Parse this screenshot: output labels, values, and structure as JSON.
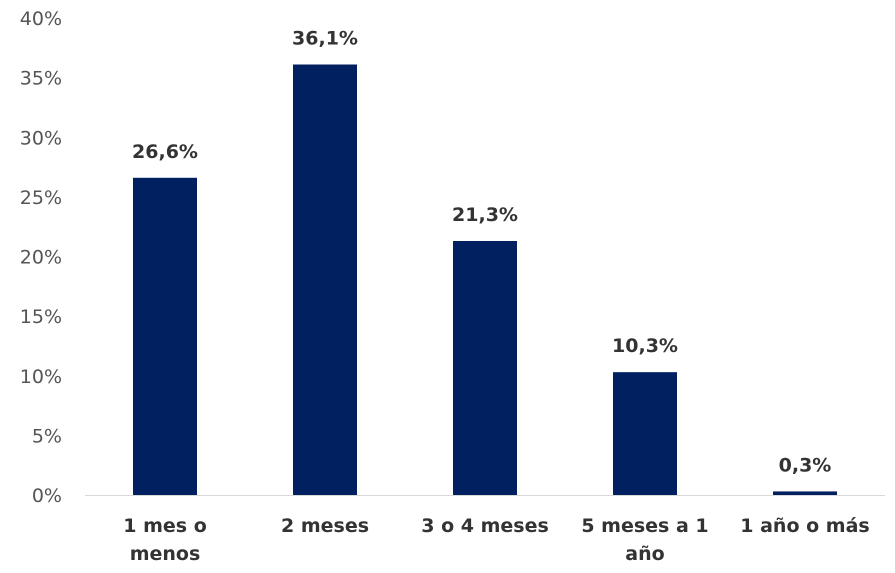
{
  "chart_data": {
    "type": "bar",
    "categories": [
      "1 mes o menos",
      "2 meses",
      "3 o 4 meses",
      "5 meses a 1 año",
      "1 año o más"
    ],
    "category_lines": [
      [
        "1 mes o",
        "menos"
      ],
      [
        "2 meses"
      ],
      [
        "3 o 4 meses"
      ],
      [
        "5 meses a 1",
        "año"
      ],
      [
        "1 año o más"
      ]
    ],
    "values": [
      26.6,
      36.1,
      21.3,
      10.3,
      0.3
    ],
    "data_labels": [
      "26,6%",
      "36,1%",
      "21,3%",
      "10,3%",
      "0,3%"
    ],
    "y_ticks": [
      "0%",
      "5%",
      "10%",
      "15%",
      "20%",
      "25%",
      "30%",
      "35%",
      "40%"
    ],
    "ylim": [
      0,
      40
    ],
    "grid": false,
    "legend": "none",
    "bar_color": "#002060",
    "title": "",
    "xlabel": "",
    "ylabel": ""
  }
}
